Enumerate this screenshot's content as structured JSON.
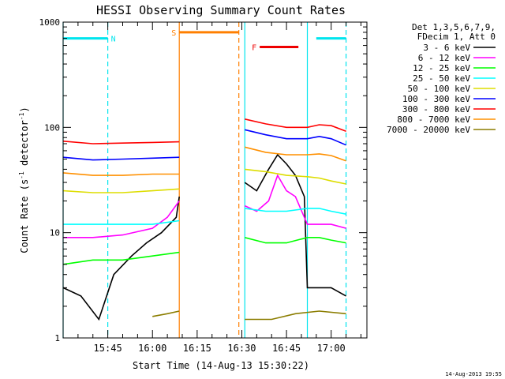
{
  "chart_data": {
    "type": "line",
    "title": "HESSI Observing Summary Count Rates",
    "xlabel": "Start Time (14-Aug-13 15:30:22)",
    "ylabel": "Count Rate (s⁻¹ detector⁻¹)",
    "ylabel_parts": {
      "main": "Count Rate (s",
      "exp1": "-1",
      "mid": " detector",
      "exp2": "-1",
      "end": ")"
    },
    "yscale": "log",
    "ylim": [
      1,
      1000
    ],
    "xlim": [
      "15:30",
      "17:12"
    ],
    "x_ticks": [
      "15:45",
      "16:00",
      "16:15",
      "16:30",
      "16:45",
      "17:00"
    ],
    "y_ticks": [
      "1",
      "10",
      "100",
      "1000"
    ],
    "legend_title": [
      "Det 1,3,5,6,7,9,",
      "FDecim 1, Att 0"
    ],
    "legend_position": "right",
    "timestamp": "14-Aug-2013 19:55",
    "attributes": [
      {
        "label": "N",
        "color": "#00e5ee",
        "level": 700,
        "segments": [
          [
            "15:30",
            "15:45"
          ],
          [
            "16:55",
            "17:05"
          ]
        ]
      },
      {
        "label": "S",
        "color": "#ff7f00",
        "level": 800,
        "segments": [
          [
            "16:09",
            "16:29"
          ]
        ]
      },
      {
        "label": "F",
        "color": "#ee0000",
        "level": 580,
        "segments": [
          [
            "16:36",
            "16:49"
          ]
        ]
      }
    ],
    "vlines": [
      {
        "time": "15:30",
        "color": "#00e5ee",
        "style": "solid"
      },
      {
        "time": "15:45",
        "color": "#00e5ee",
        "style": "dashed"
      },
      {
        "time": "16:09",
        "color": "#ff7f00",
        "style": "solid"
      },
      {
        "time": "16:29",
        "color": "#ff7f00",
        "style": "dashed"
      },
      {
        "time": "16:31",
        "color": "#00e5ee",
        "style": "solid"
      },
      {
        "time": "16:52",
        "color": "#00e5ee",
        "style": "solid"
      },
      {
        "time": "17:05",
        "color": "#00e5ee",
        "style": "dashed"
      }
    ],
    "series": [
      {
        "name": "3 - 6 keV",
        "color": "#000000",
        "points": [
          [
            "15:30",
            3
          ],
          [
            "15:36",
            2.5
          ],
          [
            "15:42",
            1.5
          ],
          [
            "15:47",
            4
          ],
          [
            "15:53",
            6
          ],
          [
            "15:58",
            8
          ],
          [
            "16:03",
            10
          ],
          [
            "16:08",
            14
          ],
          [
            "16:09",
            22
          ],
          [
            "16:31",
            30
          ],
          [
            "16:35",
            25
          ],
          [
            "16:39",
            40
          ],
          [
            "16:42",
            55
          ],
          [
            "16:45",
            45
          ],
          [
            "16:48",
            35
          ],
          [
            "16:51",
            22
          ],
          [
            "16:52",
            3
          ],
          [
            "16:56",
            3
          ],
          [
            "17:00",
            3
          ],
          [
            "17:05",
            2.5
          ]
        ]
      },
      {
        "name": "6 - 12 keV",
        "color": "#ff00ff",
        "points": [
          [
            "15:30",
            9
          ],
          [
            "15:40",
            9
          ],
          [
            "15:50",
            9.5
          ],
          [
            "16:00",
            11
          ],
          [
            "16:05",
            14
          ],
          [
            "16:09",
            20
          ],
          [
            "16:31",
            18
          ],
          [
            "16:35",
            16
          ],
          [
            "16:39",
            20
          ],
          [
            "16:42",
            35
          ],
          [
            "16:45",
            25
          ],
          [
            "16:48",
            22
          ],
          [
            "16:52",
            12
          ],
          [
            "16:56",
            12
          ],
          [
            "17:00",
            12
          ],
          [
            "17:05",
            11
          ]
        ]
      },
      {
        "name": "12 - 25 keV",
        "color": "#00ff00",
        "points": [
          [
            "15:30",
            5
          ],
          [
            "15:40",
            5.5
          ],
          [
            "15:50",
            5.5
          ],
          [
            "16:00",
            6
          ],
          [
            "16:09",
            6.5
          ],
          [
            "16:31",
            9
          ],
          [
            "16:38",
            8
          ],
          [
            "16:45",
            8
          ],
          [
            "16:52",
            9
          ],
          [
            "16:56",
            9
          ],
          [
            "17:00",
            8.5
          ],
          [
            "17:05",
            8
          ]
        ]
      },
      {
        "name": "25 - 50 keV",
        "color": "#00ffff",
        "points": [
          [
            "15:30",
            12
          ],
          [
            "15:40",
            12
          ],
          [
            "15:50",
            12
          ],
          [
            "16:00",
            12
          ],
          [
            "16:09",
            13
          ],
          [
            "16:31",
            17
          ],
          [
            "16:38",
            16
          ],
          [
            "16:45",
            16
          ],
          [
            "16:52",
            17
          ],
          [
            "16:56",
            17
          ],
          [
            "17:00",
            16
          ],
          [
            "17:05",
            15
          ]
        ]
      },
      {
        "name": "50 - 100 keV",
        "color": "#dddd00",
        "points": [
          [
            "15:30",
            25
          ],
          [
            "15:40",
            24
          ],
          [
            "15:50",
            24
          ],
          [
            "16:00",
            25
          ],
          [
            "16:09",
            26
          ],
          [
            "16:31",
            40
          ],
          [
            "16:38",
            38
          ],
          [
            "16:45",
            35
          ],
          [
            "16:52",
            34
          ],
          [
            "16:56",
            33
          ],
          [
            "17:00",
            31
          ],
          [
            "17:05",
            29
          ]
        ]
      },
      {
        "name": "100 - 300 keV",
        "color": "#0000ff",
        "points": [
          [
            "15:30",
            52
          ],
          [
            "15:40",
            49
          ],
          [
            "15:50",
            50
          ],
          [
            "16:00",
            51
          ],
          [
            "16:09",
            52
          ],
          [
            "16:31",
            95
          ],
          [
            "16:38",
            85
          ],
          [
            "16:45",
            78
          ],
          [
            "16:52",
            78
          ],
          [
            "16:56",
            82
          ],
          [
            "17:00",
            78
          ],
          [
            "17:05",
            68
          ]
        ]
      },
      {
        "name": "300 - 800 keV",
        "color": "#ff0000",
        "points": [
          [
            "15:30",
            74
          ],
          [
            "15:40",
            70
          ],
          [
            "15:50",
            71
          ],
          [
            "16:00",
            72
          ],
          [
            "16:09",
            73
          ],
          [
            "16:31",
            120
          ],
          [
            "16:38",
            108
          ],
          [
            "16:45",
            100
          ],
          [
            "16:52",
            100
          ],
          [
            "16:56",
            106
          ],
          [
            "17:00",
            104
          ],
          [
            "17:05",
            92
          ]
        ]
      },
      {
        "name": "800 - 7000 keV",
        "color": "#ff9000",
        "points": [
          [
            "15:30",
            37
          ],
          [
            "15:40",
            35
          ],
          [
            "15:50",
            35
          ],
          [
            "16:00",
            36
          ],
          [
            "16:09",
            36
          ],
          [
            "16:31",
            65
          ],
          [
            "16:38",
            58
          ],
          [
            "16:45",
            55
          ],
          [
            "16:52",
            55
          ],
          [
            "16:56",
            56
          ],
          [
            "17:00",
            54
          ],
          [
            "17:05",
            48
          ]
        ]
      },
      {
        "name": "7000 - 20000 keV",
        "color": "#8b7d00",
        "points": [
          [
            "16:00",
            1.6
          ],
          [
            "16:05",
            1.7
          ],
          [
            "16:09",
            1.8
          ],
          [
            "16:31",
            1.5
          ],
          [
            "16:40",
            1.5
          ],
          [
            "16:48",
            1.7
          ],
          [
            "16:56",
            1.8
          ],
          [
            "17:05",
            1.7
          ]
        ]
      }
    ]
  }
}
